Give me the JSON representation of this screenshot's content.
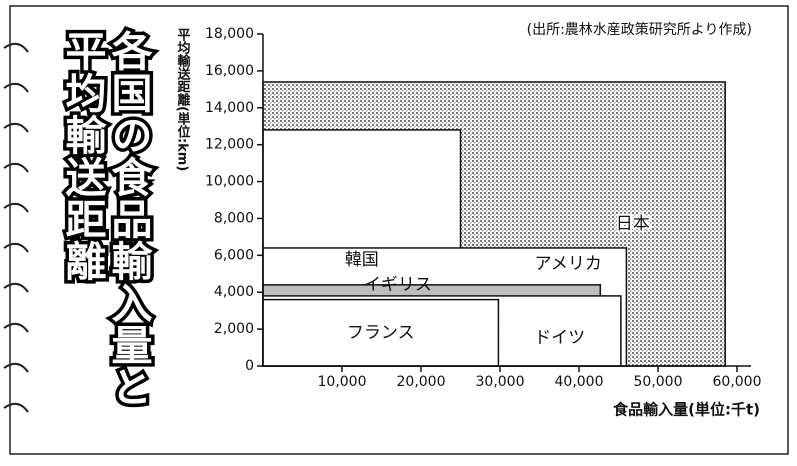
{
  "chart_data": {
    "type": "nested-rect",
    "title": [
      "各国の食品輸入量と",
      "平均輸送距離"
    ],
    "source": "(出所:農林水産政策研究所より作成)",
    "y_label": "平均輸送距離(単位:km)",
    "x_label": "食品輸入量(単位:千t)",
    "xlim": [
      0,
      60000
    ],
    "xticks": [
      {
        "value": 10000,
        "label": "10,000"
      },
      {
        "value": 20000,
        "label": "20,000"
      },
      {
        "value": 30000,
        "label": "30,000"
      },
      {
        "value": 40000,
        "label": "40,000"
      },
      {
        "value": 50000,
        "label": "50,000"
      },
      {
        "value": 60000,
        "label": "60,000"
      }
    ],
    "ylim": [
      0,
      18000
    ],
    "yticks": [
      0,
      {
        "value": 2000,
        "label": "2,000"
      },
      {
        "value": 4000,
        "label": "4,000"
      },
      {
        "value": 6000,
        "label": "6,000"
      },
      {
        "value": 8000,
        "label": "8,000"
      },
      {
        "value": 10000,
        "label": "10,000"
      },
      {
        "value": 12000,
        "label": "12,000"
      },
      {
        "value": 14000,
        "label": "14,000"
      },
      {
        "value": 16000,
        "label": "16,000"
      },
      {
        "value": 18000,
        "label": "18,000"
      }
    ],
    "series": [
      {
        "name": "日本",
        "color": "#9a9a9a",
        "x": 58500,
        "y": 15400
      },
      {
        "name": "韓国",
        "color": "#ffffff",
        "x": 25000,
        "y": 12800
      },
      {
        "name": "アメリカ",
        "color": "#ffffff",
        "x": 46000,
        "y": 6400
      },
      {
        "name": "イギリス",
        "color": "#bdbdbd",
        "x": 42700,
        "y": 4400
      },
      {
        "name": "ドイツ",
        "color": "#ffffff",
        "x": 45300,
        "y": 3800
      },
      {
        "name": "フランス",
        "color": "#ffffff",
        "x": 29800,
        "y": 3600
      }
    ]
  }
}
